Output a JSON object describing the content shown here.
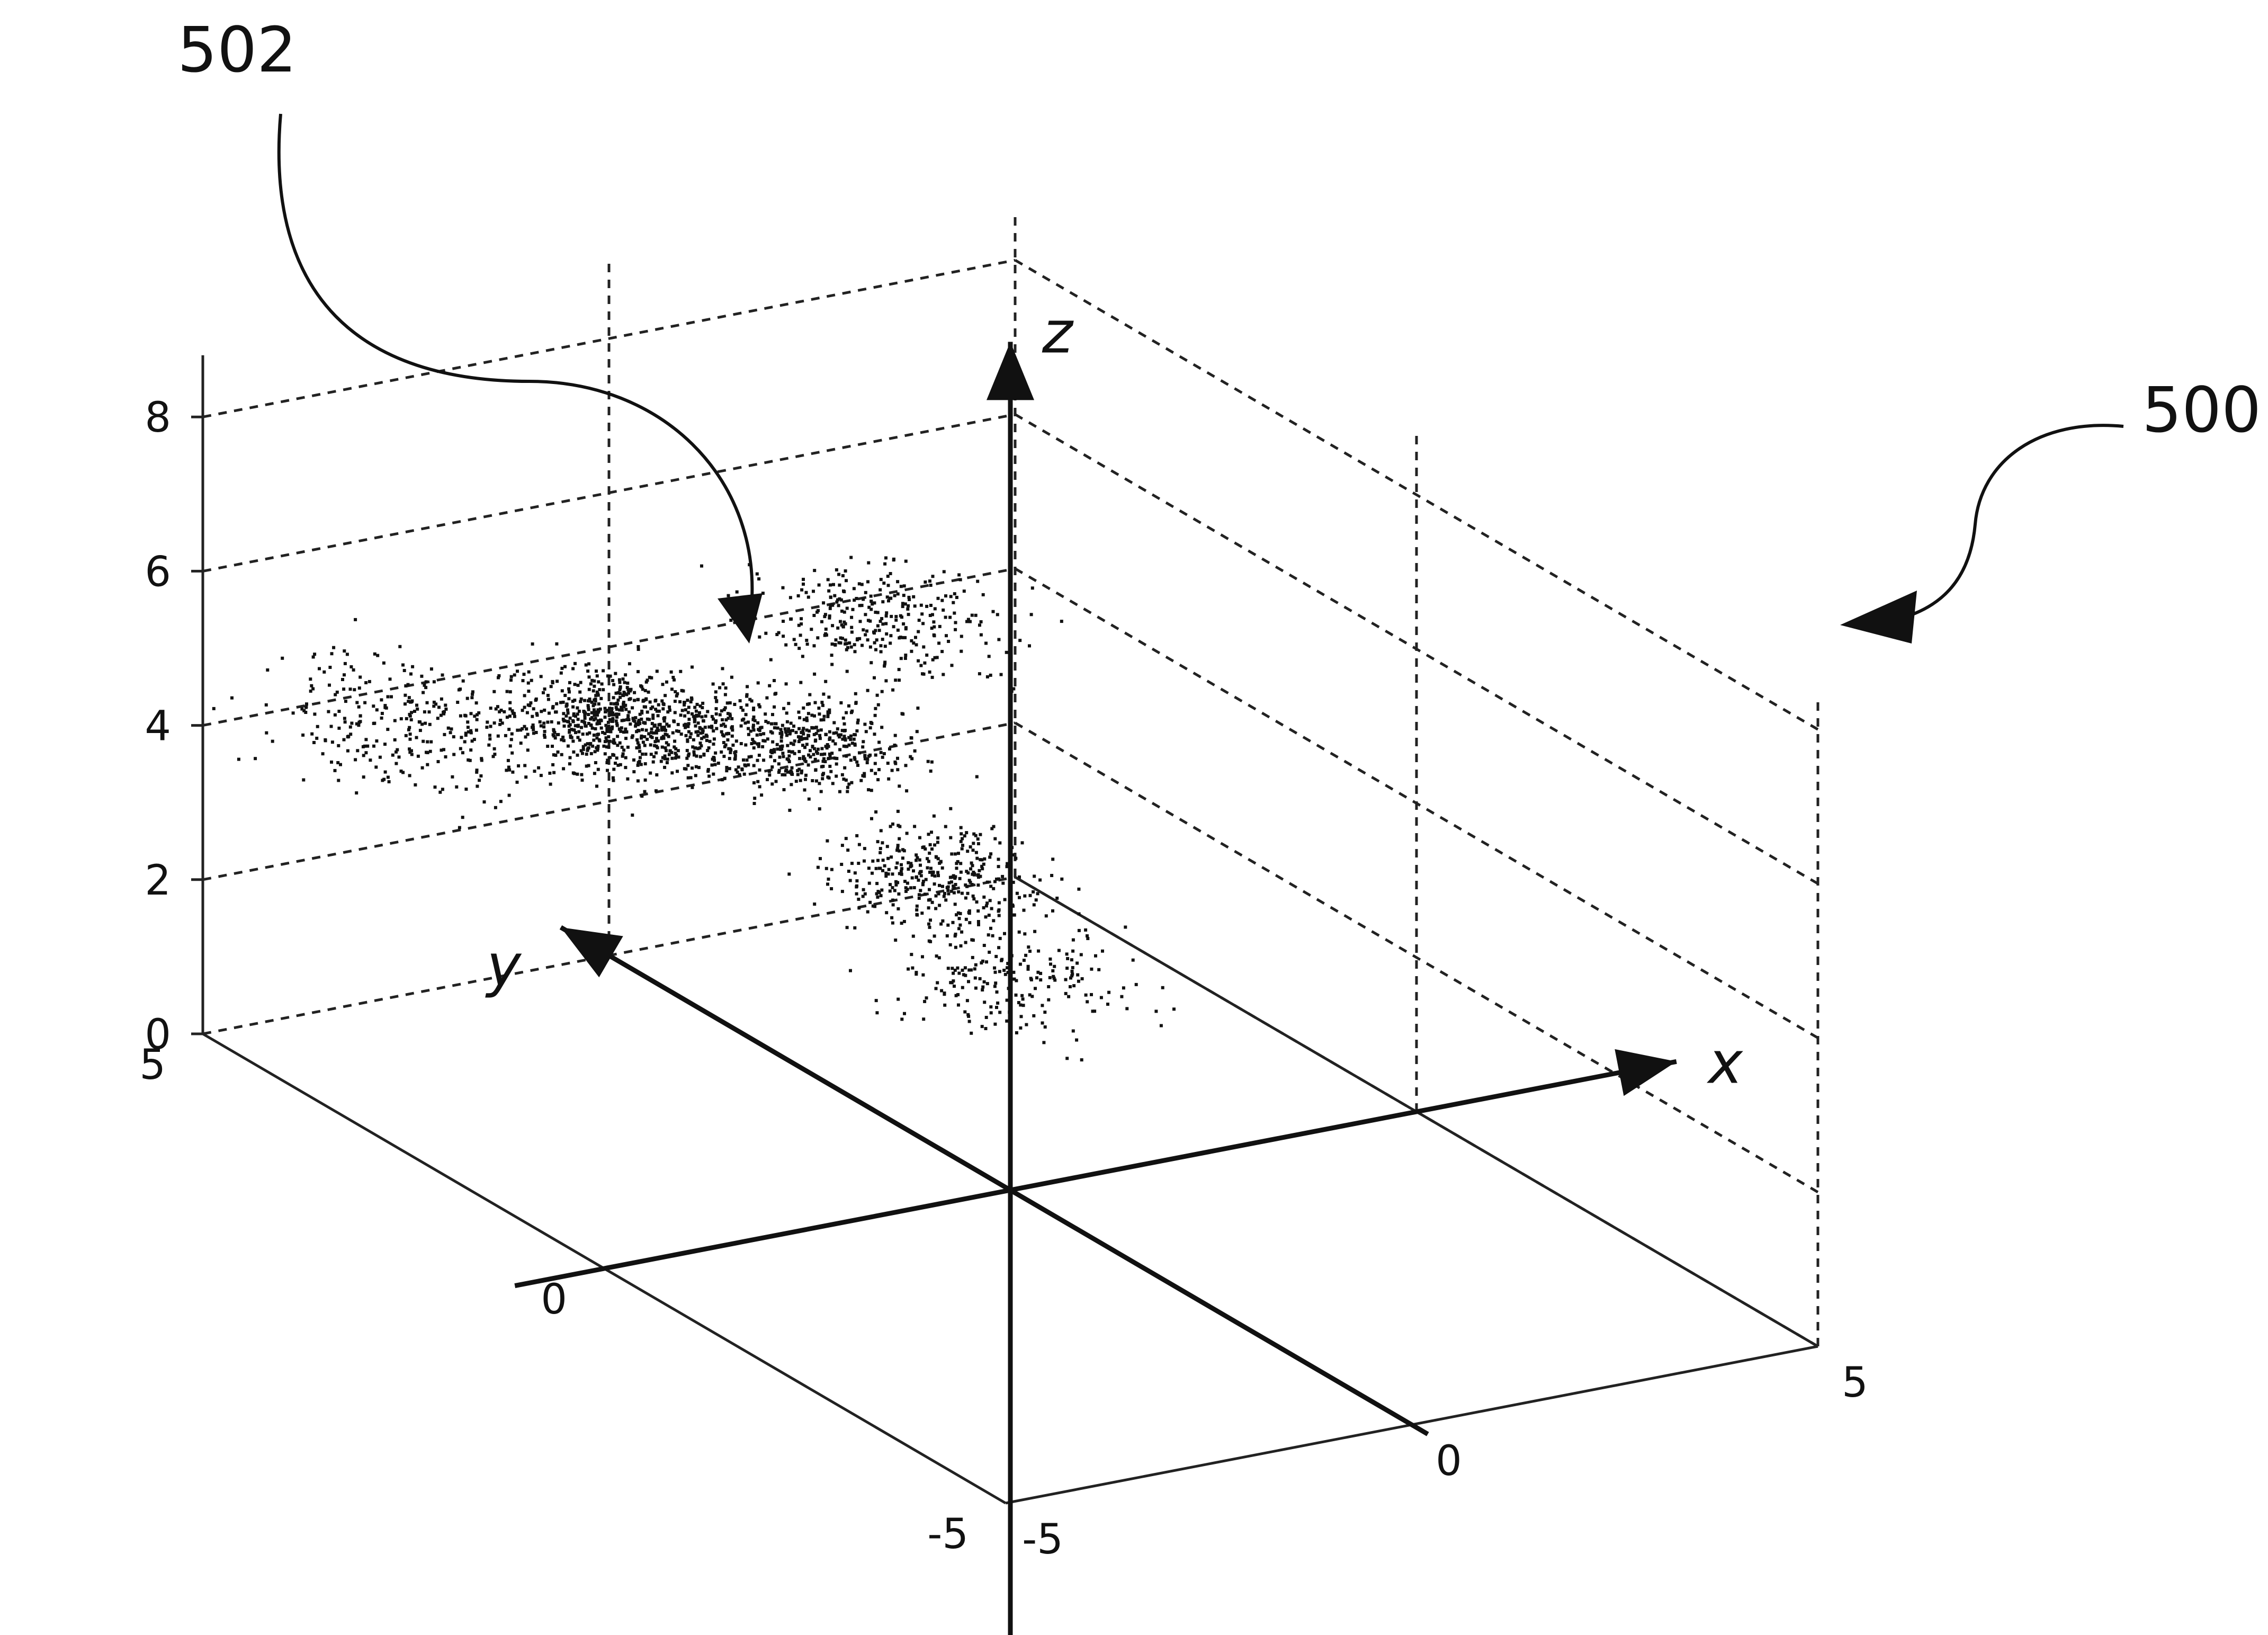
{
  "figure": {
    "ref_cloud": "502",
    "ref_frame": "500"
  },
  "chart_data": {
    "type": "scatter",
    "title": "",
    "axis_labels": {
      "x": "x",
      "y": "y",
      "z": "z"
    },
    "xlim": [
      -5,
      5
    ],
    "ylim": [
      -5,
      5
    ],
    "zlim": [
      0,
      8
    ],
    "x_ticks": [
      "-5",
      "0",
      "5"
    ],
    "y_ticks": [
      "-5",
      "0",
      "5"
    ],
    "z_ticks": [
      "0",
      "2",
      "4",
      "6",
      "8"
    ],
    "grid": true,
    "clusters": [
      {
        "x": -3.8,
        "y": 3.6,
        "z": 4.6,
        "spread": 0.8,
        "count": 320
      },
      {
        "x": -2.2,
        "y": 2.6,
        "z": 5.0,
        "spread": 0.6,
        "count": 520
      },
      {
        "x": -0.8,
        "y": 1.8,
        "z": 4.9,
        "spread": 0.6,
        "count": 480
      },
      {
        "x": 0.8,
        "y": 2.4,
        "z": 5.8,
        "spread": 0.7,
        "count": 320
      },
      {
        "x": -1.4,
        "y": 3.2,
        "z": 4.3,
        "spread": 0.7,
        "count": 220
      },
      {
        "x": 0.3,
        "y": 1.2,
        "z": 3.3,
        "spread": 0.6,
        "count": 360
      },
      {
        "x": 0.9,
        "y": 1.0,
        "z": 2.0,
        "spread": 0.7,
        "count": 220
      }
    ],
    "color": "#111111"
  }
}
